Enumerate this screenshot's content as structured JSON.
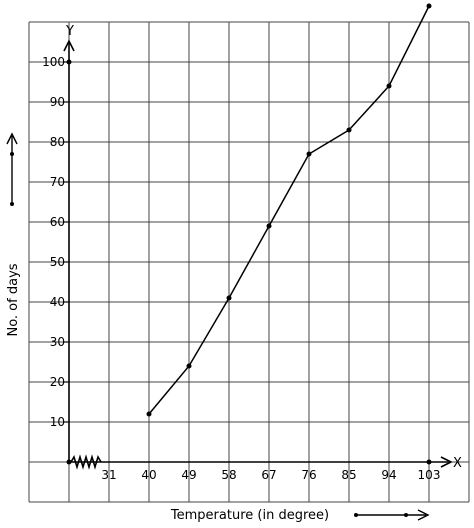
{
  "chart_data": {
    "type": "line",
    "xlabel": "Temperature (in degree)",
    "ylabel": "No. of days",
    "x_axis_letter": "X",
    "y_axis_letter": "Y",
    "x_ticks": [
      "31",
      "40",
      "49",
      "58",
      "67",
      "76",
      "85",
      "94",
      "103"
    ],
    "y_ticks": [
      "10",
      "20",
      "30",
      "40",
      "50",
      "60",
      "70",
      "80",
      "90",
      "100"
    ],
    "x_break": true,
    "grid": true,
    "series": [
      {
        "x": [
          40,
          49,
          58,
          67,
          76,
          85,
          94,
          103
        ],
        "y": [
          12,
          24,
          41,
          59,
          77,
          83,
          94,
          114
        ]
      }
    ]
  }
}
